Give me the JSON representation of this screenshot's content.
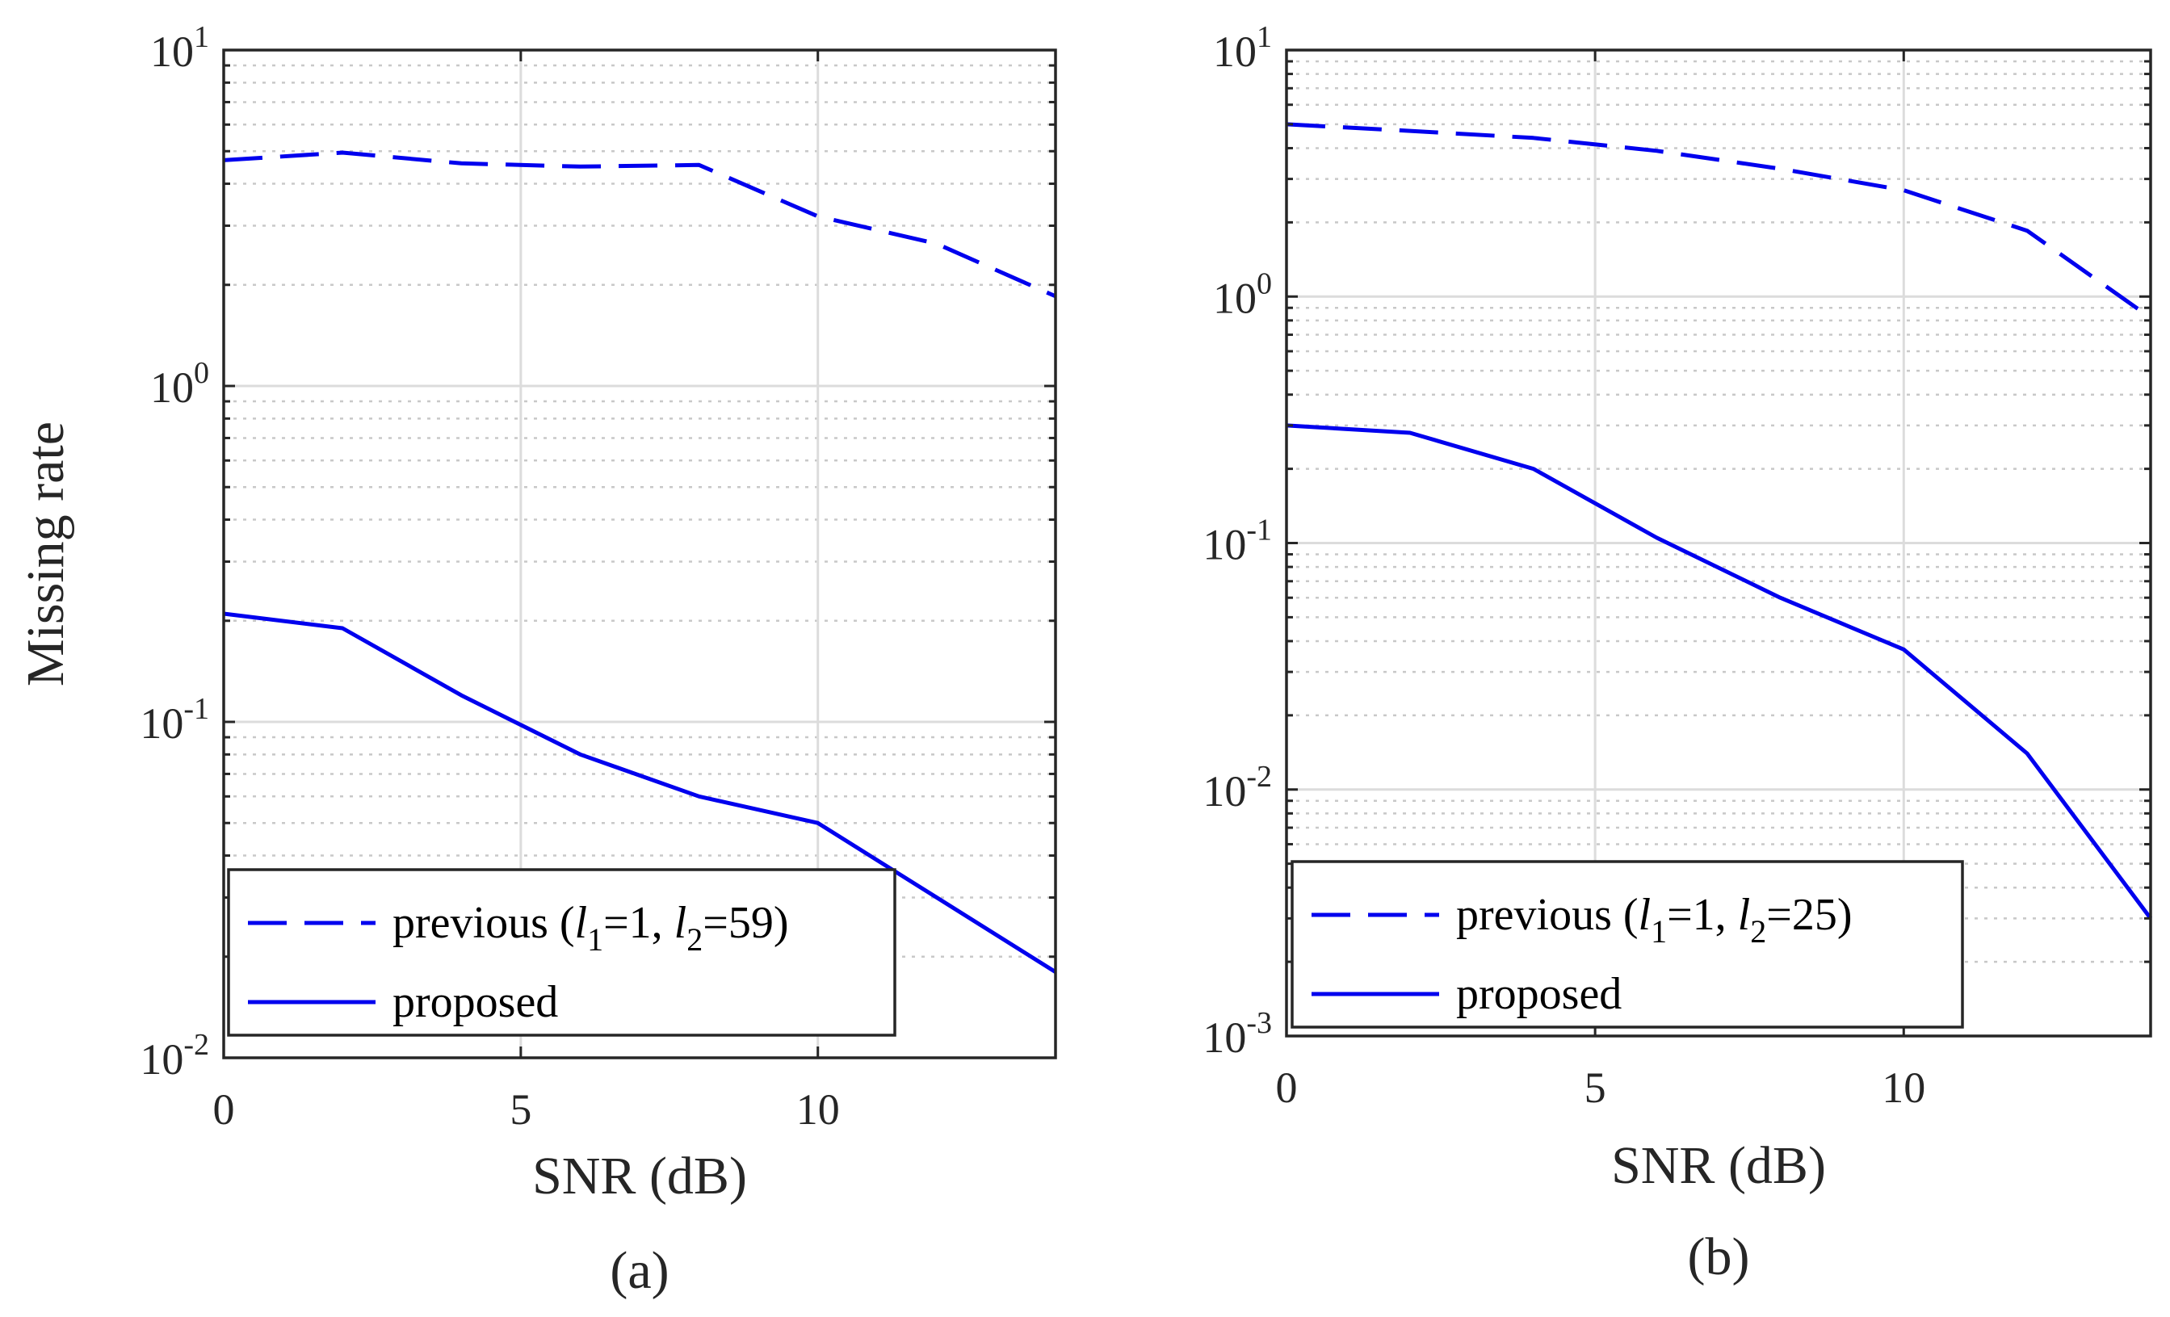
{
  "chart_data": [
    {
      "id": "a",
      "type": "line",
      "caption": "(a)",
      "xlabel": "SNR (dB)",
      "ylabel": "Missing rate",
      "yscale": "log",
      "xlim": [
        0,
        14
      ],
      "ylim": [
        0.01,
        10
      ],
      "xticks": [
        "0",
        "5",
        "10"
      ],
      "yticks": [
        {
          "base": "10",
          "exp": "-2"
        },
        {
          "base": "10",
          "exp": "-1"
        },
        {
          "base": "10",
          "exp": "0"
        },
        {
          "base": "10",
          "exp": "1"
        }
      ],
      "grid": true,
      "legend_position": "bottom-left",
      "legend": [
        {
          "series": "previous",
          "text": "previous (",
          "l1": "l",
          "l1sub": "1",
          "mid": "=1, ",
          "l2": "l",
          "l2sub": "2",
          "end": "=59)"
        },
        {
          "series": "proposed",
          "text": "proposed"
        }
      ],
      "series": [
        {
          "name": "previous",
          "style": "dashed",
          "color": "#0000ee",
          "x": [
            0,
            2,
            4,
            6,
            8,
            10,
            12,
            14
          ],
          "values": [
            4.7,
            4.95,
            4.6,
            4.5,
            4.55,
            3.2,
            2.65,
            1.85
          ]
        },
        {
          "name": "proposed",
          "style": "solid",
          "color": "#0000ee",
          "x": [
            0,
            2,
            4,
            6,
            8,
            10,
            12,
            14
          ],
          "values": [
            0.21,
            0.19,
            0.12,
            0.08,
            0.06,
            0.05,
            0.03,
            0.018
          ]
        }
      ]
    },
    {
      "id": "b",
      "type": "line",
      "caption": "(b)",
      "xlabel": "SNR (dB)",
      "ylabel": "",
      "yscale": "log",
      "xlim": [
        0,
        14
      ],
      "ylim": [
        0.001,
        10
      ],
      "xticks": [
        "0",
        "5",
        "10"
      ],
      "yticks": [
        {
          "base": "10",
          "exp": "-3"
        },
        {
          "base": "10",
          "exp": "-2"
        },
        {
          "base": "10",
          "exp": "-1"
        },
        {
          "base": "10",
          "exp": "0"
        },
        {
          "base": "10",
          "exp": "1"
        }
      ],
      "grid": true,
      "legend_position": "bottom-left",
      "legend": [
        {
          "series": "previous",
          "text": "previous (",
          "l1": "l",
          "l1sub": "1",
          "mid": "=1, ",
          "l2": "l",
          "l2sub": "2",
          "end": "=25)"
        },
        {
          "series": "proposed",
          "text": "proposed"
        }
      ],
      "series": [
        {
          "name": "previous",
          "style": "dashed",
          "color": "#0000ee",
          "x": [
            0,
            2,
            4,
            6,
            8,
            10,
            12,
            14
          ],
          "values": [
            5.0,
            4.7,
            4.4,
            3.9,
            3.3,
            2.7,
            1.85,
            0.82
          ]
        },
        {
          "name": "proposed",
          "style": "solid",
          "color": "#0000ee",
          "x": [
            0,
            2,
            4,
            6,
            8,
            10,
            12,
            14
          ],
          "values": [
            0.3,
            0.28,
            0.2,
            0.105,
            0.06,
            0.037,
            0.014,
            0.003
          ]
        }
      ]
    }
  ]
}
